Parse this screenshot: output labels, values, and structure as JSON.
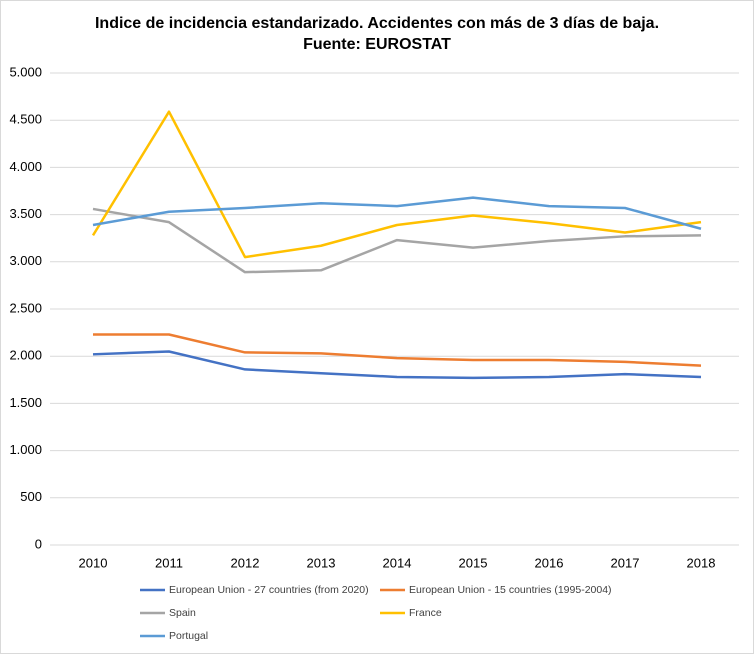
{
  "chart_data": {
    "type": "line",
    "title": [
      "Indice de incidencia estandarizado. Accidentes con más de 3 días de baja.",
      "Fuente: EUROSTAT"
    ],
    "categories": [
      "2010",
      "2011",
      "2012",
      "2013",
      "2014",
      "2015",
      "2016",
      "2017",
      "2018"
    ],
    "series": [
      {
        "name": "European Union - 27 countries (from 2020)",
        "color": "#4472c4",
        "values": [
          2020,
          2050,
          1860,
          1820,
          1780,
          1770,
          1780,
          1810,
          1780
        ]
      },
      {
        "name": "European Union - 15 countries (1995-2004)",
        "color": "#ed7d31",
        "values": [
          2230,
          2230,
          2040,
          2030,
          1980,
          1960,
          1960,
          1940,
          1900
        ]
      },
      {
        "name": "Spain",
        "color": "#a5a5a5",
        "values": [
          3560,
          3420,
          2890,
          2910,
          3230,
          3150,
          3220,
          3270,
          3280
        ]
      },
      {
        "name": "France",
        "color": "#ffc000",
        "values": [
          3280,
          4590,
          3050,
          3170,
          3390,
          3490,
          3410,
          3310,
          3420
        ]
      },
      {
        "name": "Portugal",
        "color": "#5b9bd5",
        "values": [
          3390,
          3530,
          3570,
          3620,
          3590,
          3680,
          3590,
          3570,
          3350
        ]
      }
    ],
    "ylim": [
      0,
      5000
    ],
    "yticks": [
      0,
      500,
      {
        "value": 1000,
        "label": "1.000"
      },
      {
        "value": 1500,
        "label": "1.500"
      },
      {
        "value": 2000,
        "label": "2.000"
      },
      {
        "value": 2500,
        "label": "2.500"
      },
      {
        "value": 3000,
        "label": "3.000"
      },
      {
        "value": 3500,
        "label": "3.500"
      },
      {
        "value": 4000,
        "label": "4.000"
      },
      {
        "value": 4500,
        "label": "4.500"
      },
      {
        "value": 5000,
        "label": "5.000"
      }
    ],
    "grid": true
  }
}
